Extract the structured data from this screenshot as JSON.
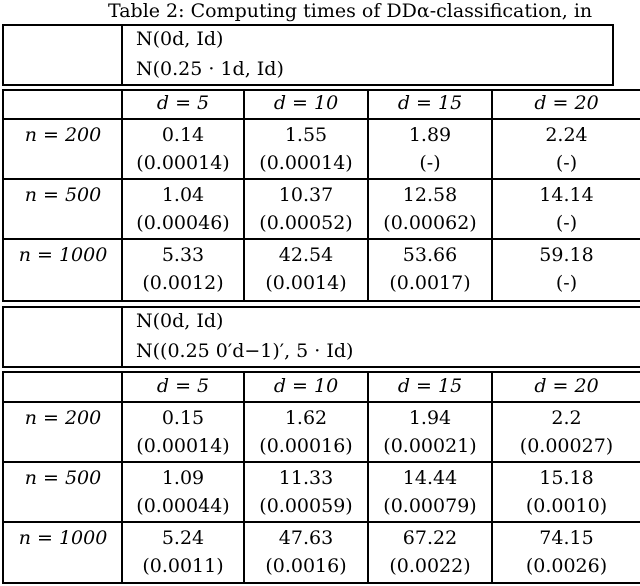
{
  "caption": "Table 2: Computing times of DDα-classification, in",
  "panels": [
    {
      "dist_line1": "N(0d, Id)",
      "dist_line2": "N(0.25 · 1d, Id)",
      "headers": [
        "d = 5",
        "d = 10",
        "d = 15",
        "d = 20"
      ],
      "rows": [
        {
          "label": "n = 200",
          "times": [
            "0.14",
            "1.55",
            "1.89",
            "2.24"
          ],
          "errs": [
            "(0.00014)",
            "(0.00014)",
            "(-)",
            "(-)"
          ]
        },
        {
          "label": "n = 500",
          "times": [
            "1.04",
            "10.37",
            "12.58",
            "14.14"
          ],
          "errs": [
            "(0.00046)",
            "(0.00052)",
            "(0.00062)",
            "(-)"
          ]
        },
        {
          "label": "n = 1000",
          "times": [
            "5.33",
            "42.54",
            "53.66",
            "59.18"
          ],
          "errs": [
            "(0.0012)",
            "(0.0014)",
            "(0.0017)",
            "(-)"
          ]
        }
      ]
    },
    {
      "dist_line1": "N(0d, Id)",
      "dist_line2": "N((0.25 0′d−1)′, 5 · Id)",
      "headers": [
        "d = 5",
        "d = 10",
        "d = 15",
        "d = 20"
      ],
      "rows": [
        {
          "label": "n = 200",
          "times": [
            "0.15",
            "1.62",
            "1.94",
            "2.2"
          ],
          "errs": [
            "(0.00014)",
            "(0.00016)",
            "(0.00021)",
            "(0.00027)"
          ]
        },
        {
          "label": "n = 500",
          "times": [
            "1.09",
            "11.33",
            "14.44",
            "15.18"
          ],
          "errs": [
            "(0.00044)",
            "(0.00059)",
            "(0.00079)",
            "(0.0010)"
          ]
        },
        {
          "label": "n = 1000",
          "times": [
            "5.24",
            "47.63",
            "67.22",
            "74.15"
          ],
          "errs": [
            "(0.0011)",
            "(0.0016)",
            "(0.0022)",
            "(0.0026)"
          ]
        }
      ]
    }
  ]
}
